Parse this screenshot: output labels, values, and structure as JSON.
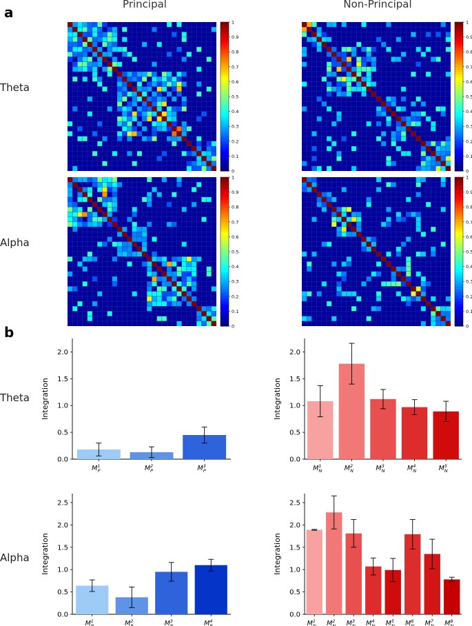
{
  "panel_labels": {
    "a": "a",
    "b": "b"
  },
  "columns": {
    "left": "Principal",
    "right": "Non-Principal"
  },
  "rows": {
    "theta": "Theta",
    "alpha": "Alpha"
  },
  "colors": {
    "principal": [
      "#9ecbf5",
      "#5e93e8",
      "#2e63dc",
      "#0535c8"
    ],
    "nonprincipal": [
      "#f7a1a1",
      "#f27878",
      "#e84f4f",
      "#dd2c2c",
      "#cf0b0b",
      "#dd2c2c",
      "#d21616",
      "#c50000"
    ]
  },
  "colorbar": {
    "ticks": [
      "0",
      "0.1",
      "0.2",
      "0.3",
      "0.4",
      "0.5",
      "0.6",
      "0.7",
      "0.8",
      "0.9",
      "1"
    ]
  },
  "chart_data": [
    {
      "type": "heatmap",
      "id": "theta-principal",
      "n": 30,
      "modules": [
        [
          0,
          10
        ],
        [
          10,
          24
        ],
        [
          24,
          30
        ]
      ],
      "colorbar": "jet 0-1"
    },
    {
      "type": "heatmap",
      "id": "theta-nonprincipal",
      "n": 30,
      "modules": [
        [
          0,
          5
        ],
        [
          5,
          15
        ],
        [
          15,
          19
        ],
        [
          19,
          24
        ],
        [
          24,
          30
        ]
      ],
      "colorbar": "jet 0-1"
    },
    {
      "type": "heatmap",
      "id": "alpha-principal",
      "n": 30,
      "modules": [
        [
          0,
          10
        ],
        [
          10,
          16
        ],
        [
          16,
          26
        ],
        [
          26,
          30
        ]
      ],
      "colorbar": "jet 0-1"
    },
    {
      "type": "heatmap",
      "id": "alpha-nonprincipal",
      "n": 30,
      "modules": [
        [
          0,
          3
        ],
        [
          3,
          6
        ],
        [
          6,
          12
        ],
        [
          12,
          15
        ],
        [
          15,
          18
        ],
        [
          18,
          22
        ],
        [
          22,
          26
        ],
        [
          26,
          30
        ]
      ],
      "colorbar": "jet 0-1"
    },
    {
      "type": "bar",
      "id": "theta-principal-bar",
      "ylabel": "Integration",
      "ylim": [
        0,
        2.25
      ],
      "yticks": [
        "0.0",
        "0.5",
        "1.0",
        "1.5",
        "2.0"
      ],
      "categories": [
        [
          "M",
          "P",
          "1"
        ],
        [
          "M",
          "P",
          "2"
        ],
        [
          "M",
          "P",
          "3"
        ]
      ],
      "values": [
        0.18,
        0.13,
        0.45
      ],
      "errors": [
        0.12,
        0.1,
        0.15
      ]
    },
    {
      "type": "bar",
      "id": "theta-nonprincipal-bar",
      "ylabel": "Integration",
      "ylim": [
        0,
        2.25
      ],
      "yticks": [
        "0.0",
        "0.5",
        "1.0",
        "1.5",
        "2.0"
      ],
      "categories": [
        [
          "M",
          "N",
          "1"
        ],
        [
          "M",
          "N",
          "2"
        ],
        [
          "M",
          "N",
          "3"
        ],
        [
          "M",
          "N",
          "4"
        ],
        [
          "M",
          "N",
          "5"
        ]
      ],
      "values": [
        1.08,
        1.78,
        1.12,
        0.97,
        0.89
      ],
      "errors": [
        0.29,
        0.38,
        0.18,
        0.14,
        0.19
      ]
    },
    {
      "type": "bar",
      "id": "alpha-principal-bar",
      "ylabel": "Integration",
      "ylim": [
        0,
        2.7
      ],
      "yticks": [
        "0.0",
        "0.5",
        "1.0",
        "1.5",
        "2.0",
        "2.5"
      ],
      "categories": [
        [
          "M",
          "P",
          "1"
        ],
        [
          "M",
          "P",
          "2"
        ],
        [
          "M",
          "P",
          "3"
        ],
        [
          "M",
          "P",
          "4"
        ]
      ],
      "values": [
        0.64,
        0.38,
        0.95,
        1.1
      ],
      "errors": [
        0.13,
        0.23,
        0.21,
        0.13
      ]
    },
    {
      "type": "bar",
      "id": "alpha-nonprincipal-bar",
      "ylabel": "Integration",
      "ylim": [
        0,
        2.7
      ],
      "yticks": [
        "0.0",
        "0.5",
        "1.0",
        "1.5",
        "2.0",
        "2.5"
      ],
      "categories": [
        [
          "M",
          "N",
          "1"
        ],
        [
          "M",
          "N",
          "2"
        ],
        [
          "M",
          "N",
          "3"
        ],
        [
          "M",
          "N",
          "4"
        ],
        [
          "M",
          "N",
          "5"
        ],
        [
          "M",
          "N",
          "6"
        ],
        [
          "M",
          "N",
          "7"
        ],
        [
          "M",
          "N",
          "8"
        ]
      ],
      "values": [
        1.89,
        2.28,
        1.81,
        1.07,
        0.99,
        1.79,
        1.35,
        0.78
      ],
      "errors": [
        0.01,
        0.37,
        0.31,
        0.19,
        0.26,
        0.33,
        0.33,
        0.05
      ]
    }
  ]
}
